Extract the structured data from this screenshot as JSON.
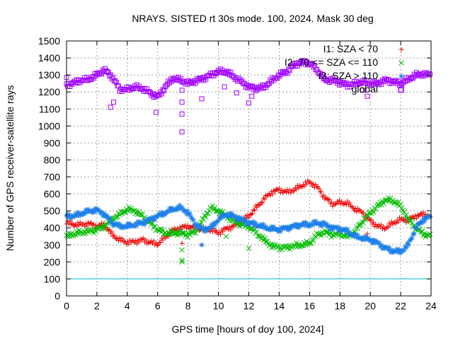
{
  "chart_data": {
    "type": "scatter",
    "title": "NRAYS. SISTED rt 30s mode. 100, 2024. Mask 30 deg",
    "xlabel": "GPS time [hours of doy 100, 2024]",
    "ylabel": "Number of GPS receiver-satellite rays",
    "xlim": [
      0,
      24
    ],
    "ylim": [
      0,
      1500
    ],
    "xticks": [
      0,
      2,
      4,
      6,
      8,
      10,
      12,
      14,
      16,
      18,
      20,
      22,
      24
    ],
    "yticks": [
      0,
      100,
      200,
      300,
      400,
      500,
      600,
      700,
      800,
      900,
      1000,
      1100,
      1200,
      1300,
      1400,
      1500
    ],
    "grid": true,
    "legend_position": "top-right",
    "reference_line": {
      "y": 100,
      "color": "#00c8d2"
    },
    "series": [
      {
        "name": "I1: SZA < 70",
        "marker": "+",
        "color": "#ee0000",
        "x": [
          0,
          0.5,
          1,
          1.5,
          2,
          2.5,
          3,
          3.5,
          4,
          4.5,
          5,
          5.5,
          6,
          6.5,
          7,
          7.5,
          8,
          8.5,
          9,
          9.5,
          10,
          10.5,
          11,
          11.5,
          12,
          12.5,
          13,
          13.5,
          14,
          14.5,
          15,
          15.5,
          16,
          16.5,
          17,
          17.5,
          18,
          18.5,
          19,
          19.5,
          20,
          20.5,
          21,
          21.5,
          22,
          22.5,
          23,
          23.5,
          24
        ],
        "y": [
          430,
          420,
          420,
          425,
          410,
          420,
          360,
          330,
          315,
          320,
          330,
          315,
          305,
          345,
          385,
          400,
          410,
          400,
          390,
          390,
          370,
          395,
          410,
          440,
          470,
          520,
          570,
          610,
          625,
          610,
          625,
          650,
          670,
          640,
          580,
          540,
          550,
          545,
          510,
          490,
          440,
          410,
          400,
          430,
          450,
          445,
          470,
          480,
          470
        ],
        "outliers": [
          [
            7.6,
            310
          ],
          [
            8.9,
            300
          ],
          [
            19.8,
            365
          ]
        ]
      },
      {
        "name": "I2: 70 <= SZA <= 110",
        "marker": "x",
        "color": "#00bb00",
        "x": [
          0,
          0.5,
          1,
          1.5,
          2,
          2.5,
          3,
          3.5,
          4,
          4.5,
          5,
          5.5,
          6,
          6.5,
          7,
          7.5,
          8,
          8.5,
          9,
          9.5,
          10,
          10.5,
          11,
          11.5,
          12,
          12.5,
          13,
          13.5,
          14,
          14.5,
          15,
          15.5,
          16,
          16.5,
          17,
          17.5,
          18,
          18.5,
          19,
          19.5,
          20,
          20.5,
          21,
          21.5,
          22,
          22.5,
          23,
          23.5,
          24
        ],
        "y": [
          350,
          365,
          375,
          380,
          390,
          410,
          450,
          480,
          510,
          500,
          470,
          430,
          390,
          370,
          370,
          370,
          360,
          380,
          450,
          520,
          500,
          470,
          440,
          420,
          410,
          370,
          330,
          295,
          285,
          285,
          295,
          300,
          310,
          360,
          375,
          360,
          365,
          350,
          380,
          440,
          490,
          530,
          565,
          560,
          530,
          450,
          400,
          365,
          350
        ],
        "outliers": [
          [
            7.6,
            270
          ],
          [
            7.6,
            210
          ],
          [
            7.6,
            200
          ],
          [
            10.5,
            350
          ],
          [
            12,
            280
          ]
        ]
      },
      {
        "name": "I3: SZA > 110",
        "marker": "*",
        "color": "#1b7fe8",
        "x": [
          0,
          0.5,
          1,
          1.5,
          2,
          2.5,
          3,
          3.5,
          4,
          4.5,
          5,
          5.5,
          6,
          6.5,
          7,
          7.5,
          8,
          8.5,
          9,
          9.5,
          10,
          10.5,
          11,
          11.5,
          12,
          12.5,
          13,
          13.5,
          14,
          14.5,
          15,
          15.5,
          16,
          16.5,
          17,
          17.5,
          18,
          18.5,
          19,
          19.5,
          20,
          20.5,
          21,
          21.5,
          22,
          22.5,
          23,
          23.5,
          24
        ],
        "y": [
          470,
          470,
          485,
          500,
          505,
          480,
          430,
          410,
          410,
          420,
          430,
          450,
          470,
          490,
          510,
          520,
          490,
          420,
          390,
          400,
          450,
          480,
          470,
          450,
          430,
          420,
          405,
          395,
          390,
          400,
          410,
          420,
          420,
          430,
          420,
          400,
          395,
          380,
          350,
          340,
          330,
          310,
          280,
          265,
          260,
          300,
          400,
          450,
          470
        ],
        "outliers": [
          [
            8.9,
            300
          ]
        ]
      },
      {
        "name": "global",
        "marker": "square",
        "color": "#a000ff",
        "x": [
          0,
          0.5,
          1,
          1.5,
          2,
          2.5,
          3,
          3.5,
          4,
          4.5,
          5,
          5.5,
          6,
          6.5,
          7,
          7.5,
          8,
          8.5,
          9,
          9.5,
          10,
          10.5,
          11,
          11.5,
          12,
          12.5,
          13,
          13.5,
          14,
          14.5,
          15,
          15.5,
          16,
          16.5,
          17,
          17.5,
          18,
          18.5,
          19,
          19.5,
          20,
          20.5,
          21,
          21.5,
          22,
          22.5,
          23,
          23.5,
          24
        ],
        "y": [
          1240,
          1255,
          1270,
          1275,
          1300,
          1330,
          1290,
          1215,
          1215,
          1230,
          1220,
          1195,
          1170,
          1230,
          1280,
          1270,
          1250,
          1265,
          1280,
          1300,
          1320,
          1320,
          1290,
          1260,
          1230,
          1220,
          1230,
          1265,
          1300,
          1320,
          1360,
          1375,
          1370,
          1330,
          1270,
          1270,
          1255,
          1240,
          1250,
          1260,
          1250,
          1250,
          1270,
          1260,
          1250,
          1275,
          1300,
          1305,
          1300
        ],
        "outliers": [
          [
            0,
            1285
          ],
          [
            2.9,
            1110
          ],
          [
            3.1,
            1140
          ],
          [
            5.9,
            1080
          ],
          [
            7.6,
            1210
          ],
          [
            7.6,
            1140
          ],
          [
            7.6,
            1070
          ],
          [
            7.6,
            965
          ],
          [
            8.9,
            1160
          ],
          [
            10.4,
            1230
          ],
          [
            11.2,
            1195
          ],
          [
            12,
            1135
          ],
          [
            12.2,
            1175
          ],
          [
            19.5,
            1210
          ],
          [
            19.8,
            1175
          ],
          [
            22,
            1210
          ]
        ]
      }
    ]
  }
}
